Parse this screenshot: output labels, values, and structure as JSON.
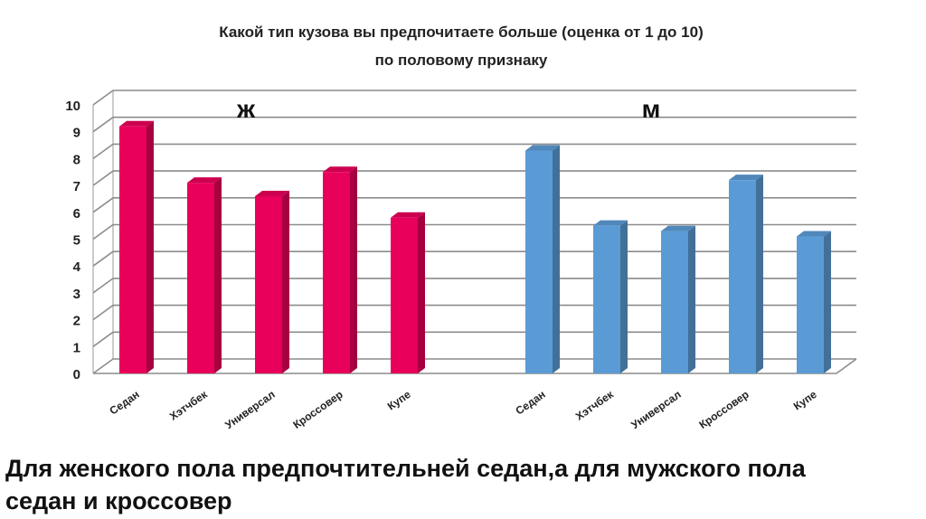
{
  "chart_data": {
    "type": "bar",
    "title_line1": "Какой тип кузова вы предпочитаете больше  (оценка от 1 до 10)",
    "title_line2": "по половому признаку",
    "ylim": [
      0,
      10
    ],
    "yticks": [
      "0",
      "1",
      "2",
      "3",
      "4",
      "5",
      "6",
      "7",
      "8",
      "9",
      "10"
    ],
    "grid": true,
    "groups": [
      {
        "name": "Ж",
        "color": "#e8005a",
        "categories": [
          "Седан",
          "Хэтчбек",
          "Универсал",
          "Кроссовер",
          "Купе"
        ],
        "values": [
          9.2,
          7.1,
          6.6,
          7.5,
          5.8
        ]
      },
      {
        "name": "М",
        "color": "#5b9bd5",
        "categories": [
          "Седан",
          "Хэтчбек",
          "Универсал",
          "Кроссовер",
          "Купе"
        ],
        "values": [
          8.3,
          5.5,
          5.3,
          7.2,
          5.1
        ]
      }
    ]
  },
  "caption": {
    "line1": "Для женского пола предпочтительней седан,а для мужского пола",
    "line2": "седан и кроссовер"
  }
}
